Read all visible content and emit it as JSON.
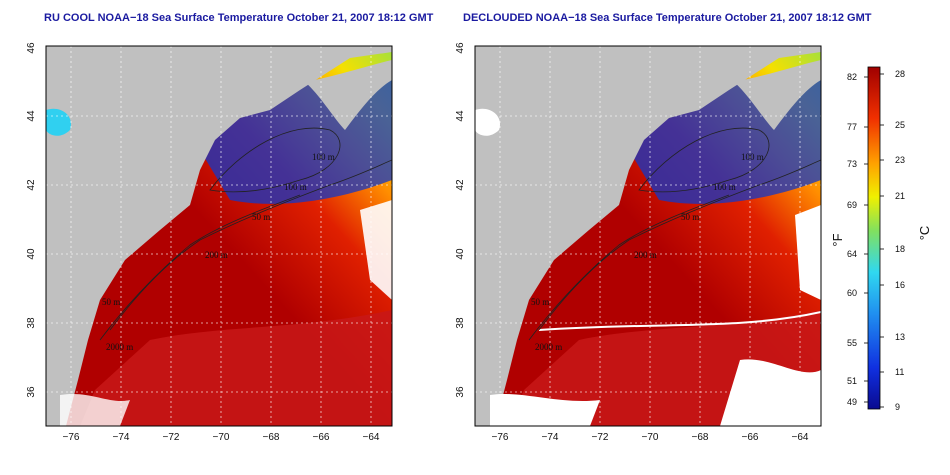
{
  "titles": {
    "left": "RU COOL NOAA−18 Sea Surface Temperature October 21, 2007 18:12 GMT",
    "right": "DECLOUDED NOAA−18 Sea Surface Temperature October 21, 2007 18:12 GMT"
  },
  "axes": {
    "x_ticks": [
      "−76",
      "−74",
      "−72",
      "−70",
      "−68",
      "−66",
      "−64"
    ],
    "y_ticks": [
      "36",
      "38",
      "40",
      "42",
      "44",
      "46"
    ]
  },
  "contour_labels": [
    "100 m",
    "100 m",
    "50 m",
    "200 m",
    "50 m",
    "2000 m"
  ],
  "colorbar": {
    "unit_f": "°F",
    "unit_c": "°C",
    "f_labels": [
      "82",
      "77",
      "73",
      "69",
      "64",
      "60",
      "55",
      "51",
      "49"
    ],
    "c_labels": [
      "28",
      "25",
      "23",
      "21",
      "18",
      "16",
      "13",
      "11",
      "9"
    ]
  },
  "colors": {
    "land": "#c0c0c0",
    "cold": "#1030c0",
    "warm": "#c81010",
    "title": "#1a1aa0"
  }
}
